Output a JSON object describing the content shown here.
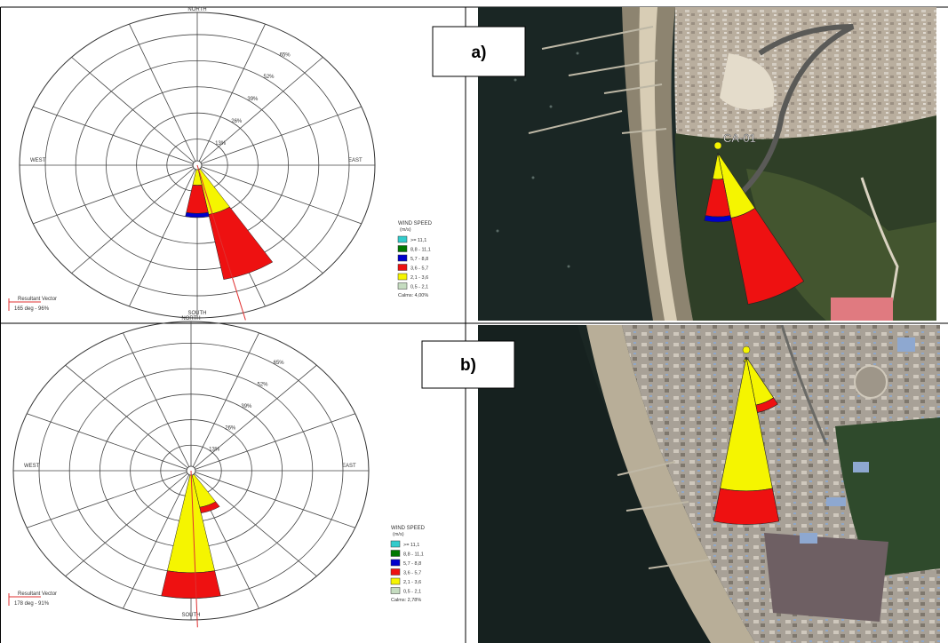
{
  "panels": [
    {
      "panel_label": "a)",
      "site_label": "CA-01",
      "compass": {
        "north": "NORTH",
        "south": "SOUTH",
        "east": "EAST",
        "west": "WEST"
      },
      "legend": {
        "title": "WIND SPEED",
        "unit": "(m/s)",
        "classes": [
          {
            "range": ">= 11,1",
            "color": "#33cccc"
          },
          {
            "range": "8,8 - 11,1",
            "color": "#007700"
          },
          {
            "range": "5,7 - 8,8",
            "color": "#0000cc"
          },
          {
            "range": "3,6 - 5,7",
            "color": "#ee1111"
          },
          {
            "range": "2,1 - 3,6",
            "color": "#f5f500"
          },
          {
            "range": "0,5 - 2,1",
            "color": "#c5dcc0"
          }
        ],
        "calms": "Calms: 4,00%"
      },
      "resultant_vector": {
        "title": "Resultant Vector",
        "value": "165 deg - 96%"
      }
    },
    {
      "panel_label": "b)",
      "site_label": "",
      "compass": {
        "north": "NORTH",
        "south": "SOUTH",
        "east": "EAST",
        "west": "WEST"
      },
      "legend": {
        "title": "WIND SPEED",
        "unit": "(m/s)",
        "classes": [
          {
            "range": ">= 11,1",
            "color": "#33cccc"
          },
          {
            "range": "8,8 - 11,1",
            "color": "#007700"
          },
          {
            "range": "5,7 - 8,8",
            "color": "#0000cc"
          },
          {
            "range": "3,6 - 5,7",
            "color": "#ee1111"
          },
          {
            "range": "2,1 - 3,6",
            "color": "#f5f500"
          },
          {
            "range": "0,5 - 2,1",
            "color": "#c5dcc0"
          }
        ],
        "calms": "Calms: 2,78%"
      },
      "resultant_vector": {
        "title": "Resultant Vector",
        "value": "178 deg - 91%"
      }
    }
  ],
  "chart_data": [
    {
      "type": "wind_rose",
      "panel": "a)",
      "directions_deg": [
        0,
        22.5,
        45,
        67.5,
        90,
        112.5,
        135,
        157.5,
        180,
        202.5,
        225,
        247.5,
        270,
        292.5,
        315,
        337.5
      ],
      "radial_ticks": [
        "13%",
        "26%",
        "39%",
        "52%",
        "65%"
      ],
      "radial_values": [
        13,
        26,
        39,
        52,
        65
      ],
      "colors": {
        "0,5 - 2,1": "#c5dcc0",
        "2,1 - 3,6": "#f5f500",
        "3,6 - 5,7": "#ee1111",
        "5,7 - 8,8": "#0000cc"
      },
      "petals": [
        {
          "direction_deg": 157.5,
          "segments": [
            {
              "class": "0,5 - 2,1",
              "to": 1
            },
            {
              "class": "2,1 - 3,6",
              "to": 25
            },
            {
              "class": "3,6 - 5,7",
              "to": 58
            }
          ]
        },
        {
          "direction_deg": 180,
          "segments": [
            {
              "class": "0,5 - 2,1",
              "to": 1
            },
            {
              "class": "2,1 - 3,6",
              "to": 10
            },
            {
              "class": "3,6 - 5,7",
              "to": 24
            },
            {
              "class": "5,7 - 8,8",
              "to": 26
            }
          ]
        }
      ],
      "resultant_direction_deg": 165
    },
    {
      "type": "wind_rose",
      "panel": "b)",
      "directions_deg": [
        0,
        22.5,
        45,
        67.5,
        90,
        112.5,
        135,
        157.5,
        180,
        202.5,
        225,
        247.5,
        270,
        292.5,
        315,
        337.5
      ],
      "radial_ticks": [
        "13%",
        "26%",
        "39%",
        "52%",
        "65%"
      ],
      "radial_values": [
        13,
        26,
        39,
        52,
        65
      ],
      "colors": {
        "0,5 - 2,1": "#c5dcc0",
        "2,1 - 3,6": "#f5f500",
        "3,6 - 5,7": "#ee1111"
      },
      "petals": [
        {
          "direction_deg": 180,
          "segments": [
            {
              "class": "0,5 - 2,1",
              "to": 1
            },
            {
              "class": "2,1 - 3,6",
              "to": 52
            },
            {
              "class": "3,6 - 5,7",
              "to": 65
            }
          ]
        },
        {
          "direction_deg": 157.5,
          "segments": [
            {
              "class": "0,5 - 2,1",
              "to": 1
            },
            {
              "class": "2,1 - 3,6",
              "to": 19
            },
            {
              "class": "3,6 - 5,7",
              "to": 22
            }
          ]
        },
        {
          "direction_deg": 202.5,
          "segments": [
            {
              "class": "2,1 - 3,6",
              "to": 2
            }
          ]
        }
      ],
      "resultant_direction_deg": 178
    }
  ]
}
